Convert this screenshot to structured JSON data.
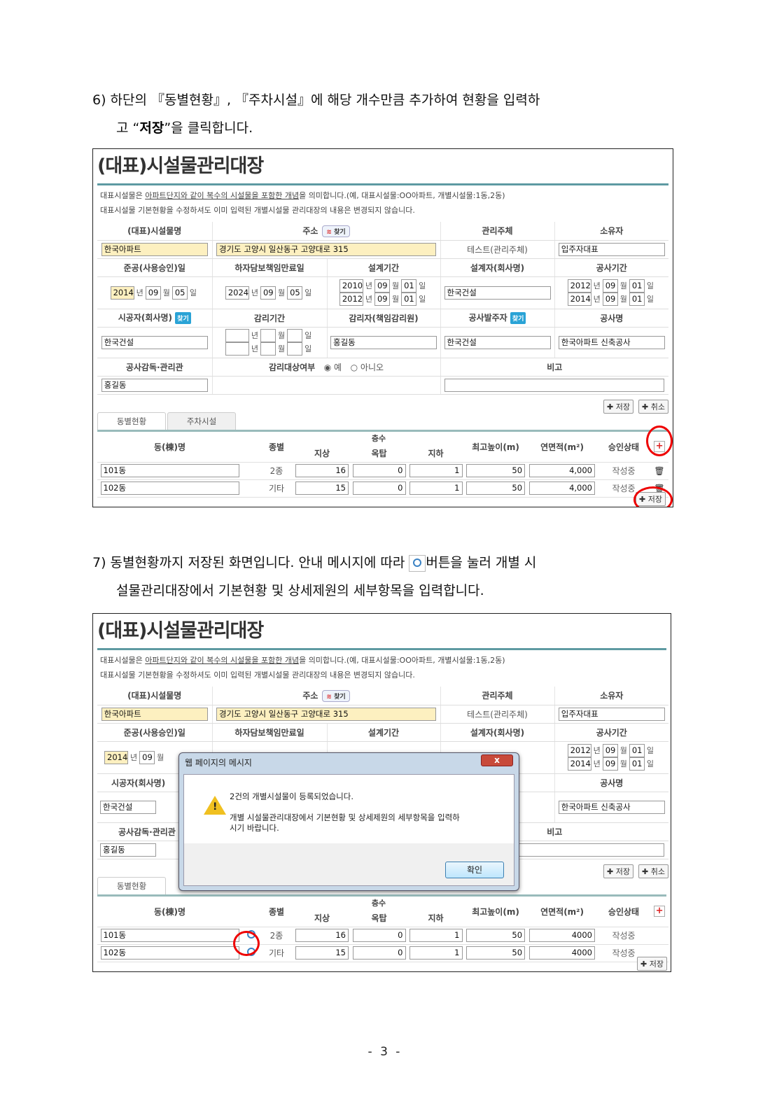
{
  "step6": {
    "line1": "6) 하단의 『동별현황』, 『주차시설』에 해당 개수만큼 추가하여 현황을 입력하",
    "line2_pre": "고 “",
    "line2_bold": "저장",
    "line2_post": "”을 클릭합니다."
  },
  "step7": {
    "line1_pre": "7) 동별현황까지 저장된 화면입니다. 안내 메시지에 따라 ",
    "line1_post": "버튼을 눌러 개별 시",
    "line2": "설물관리대장에서 기본현황 및 상세제원의 세부항목을 입력합니다."
  },
  "form": {
    "title": "(대표)시설물관리대장",
    "note1_a": "대표시설물은 ",
    "note1_u": "아파트단지와 같이 복수의 시설물을 포함한 개념",
    "note1_b": "을 의미합니다.(예, 대표시설물:OO아파트, 개별시설물:1동,2동)",
    "note2": "대표시설물 기본현황을 수정하셔도 이미 입력된 개별시설물 관리대장의 내용은 변경되지 않습니다.",
    "labels": {
      "name": "(대표)시설물명",
      "addr": "주소",
      "mgr": "관리주체",
      "owner": "소유자",
      "done": "준공(사용승인)일",
      "warranty": "하자담보책임만료일",
      "design": "설계기간",
      "designer": "설계자(회사명)",
      "construct": "공사기간",
      "builder": "시공자(회사명)",
      "supervise": "감리기간",
      "supervisor": "감리자(책임감리원)",
      "client": "공사발주자",
      "project": "공사명",
      "inspector": "공사감독·관리관",
      "target": "감리대상여부",
      "yes": "예",
      "no": "아니오",
      "remark": "비고"
    },
    "find": "찾기",
    "y": "년",
    "m": "월",
    "d": "일",
    "values": {
      "name": "한국아파트",
      "addr": "경기도 고양시 일산동구 고양대로 315",
      "mgr": "테스트(관리주체)",
      "owner": "입주자대표",
      "done": [
        "2014",
        "09",
        "05"
      ],
      "warranty": [
        "2024",
        "09",
        "05"
      ],
      "design_from": [
        "2010",
        "09",
        "01"
      ],
      "design_to": [
        "2012",
        "09",
        "01"
      ],
      "designer": "한국건설",
      "con_from": [
        "2012",
        "09",
        "01"
      ],
      "con_to": [
        "2014",
        "09",
        "01"
      ],
      "builder": "한국건설",
      "supervisor": "홍길동",
      "client": "한국건설",
      "project": "한국아파트 신축공사",
      "inspector": "홍길동",
      "remark": ""
    },
    "target_selected": "예",
    "save": "저장",
    "cancel": "취소",
    "tabs": [
      "동별현황",
      "주차시설"
    ],
    "cols": {
      "name": "동(棟)명",
      "type": "종별",
      "floors": "층수",
      "above": "지상",
      "roof": "옥탑",
      "below": "지하",
      "height": "최고높이(m)",
      "area": "연면적(m²)",
      "status": "승인상태"
    }
  },
  "table1": [
    {
      "name": "101동",
      "type": "2종",
      "above": "16",
      "roof": "0",
      "below": "1",
      "height": "50",
      "area": "4,000",
      "status": "작성중"
    },
    {
      "name": "102동",
      "type": "기타",
      "above": "15",
      "roof": "0",
      "below": "1",
      "height": "50",
      "area": "4,000",
      "status": "작성중"
    }
  ],
  "table2": [
    {
      "name": "101동",
      "type": "2종",
      "above": "16",
      "roof": "0",
      "below": "1",
      "height": "50",
      "area": "4000",
      "status": "작성중"
    },
    {
      "name": "102동",
      "type": "기타",
      "above": "15",
      "roof": "0",
      "below": "1",
      "height": "50",
      "area": "4000",
      "status": "작성중"
    }
  ],
  "dialog": {
    "title": "웹 페이지의 메시지",
    "close": "x",
    "line1": "2건의 개별시설물이 등록되었습니다.",
    "line2": "개별 시설물관리대장에서 기본현황 및 상세제원의 세부항목을 입력하",
    "line3": "시기 바랍니다.",
    "ok": "확인",
    "icon": "warning-icon"
  },
  "page_number": "- 3 -",
  "colors": {
    "highlight": "#e00000",
    "teal_rule": "#5e9aa2",
    "find_button": "#2aa3d6"
  }
}
